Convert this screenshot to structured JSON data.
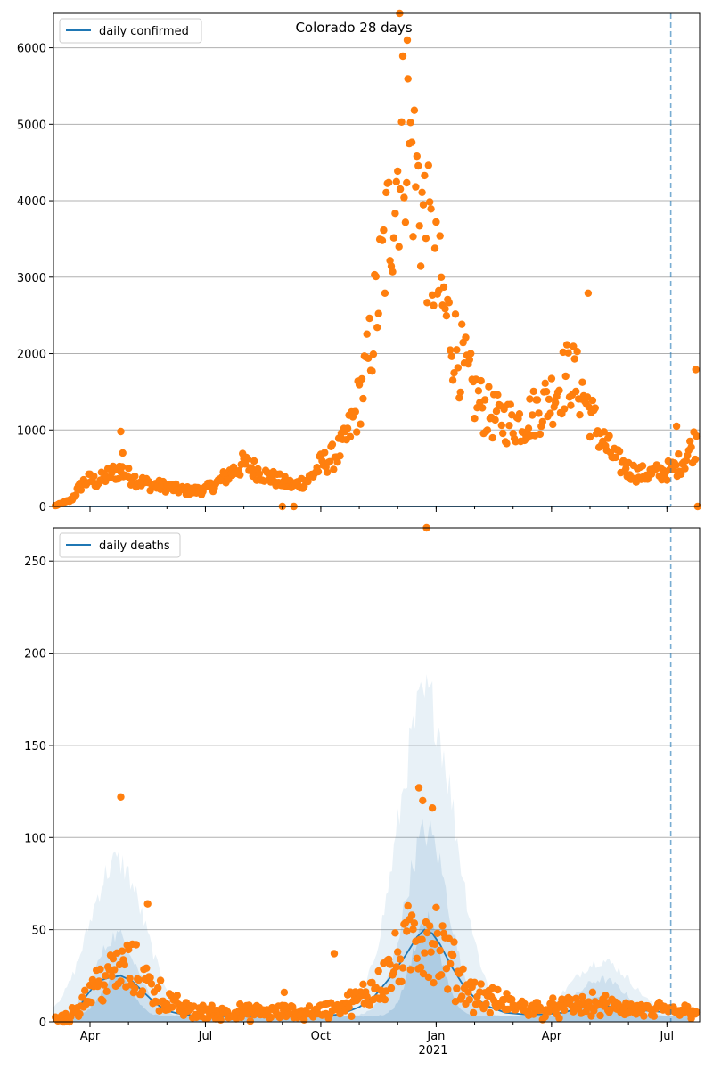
{
  "title": "Colorado 28 days",
  "colors": {
    "observed": "#ff7f0e",
    "model": "#1f77b4",
    "band": "#1f77b4",
    "grid": "#b0b0b0",
    "vline": "#1f77b4"
  },
  "x_axis": {
    "ticks": [
      {
        "label": "Apr",
        "month": 3.0
      },
      {
        "label": "Jul",
        "month": 6.0
      },
      {
        "label": "Oct",
        "month": 9.0
      },
      {
        "label": "Jan",
        "month": 12.0
      },
      {
        "label": "Apr",
        "month": 15.0
      },
      {
        "label": "Jul",
        "month": 18.0
      }
    ],
    "year_label": "2021",
    "range_months": [
      2.05,
      18.85
    ],
    "forecast_line_month": 18.1
  },
  "chart_data": [
    {
      "type": "scatter",
      "legend": "daily confirmed",
      "legend_placement": "upper-left",
      "grid": true,
      "ylim": [
        0,
        6450
      ],
      "y_ticks": [
        0,
        1000,
        2000,
        3000,
        4000,
        5000,
        6000
      ],
      "observed_keypoints": [
        [
          2.1,
          10
        ],
        [
          2.5,
          80
        ],
        [
          2.8,
          300
        ],
        [
          3.0,
          350
        ],
        [
          3.2,
          320
        ],
        [
          3.5,
          420
        ],
        [
          3.8,
          480
        ],
        [
          4.0,
          400
        ],
        [
          4.3,
          330
        ],
        [
          4.6,
          280
        ],
        [
          5.0,
          260
        ],
        [
          5.3,
          220
        ],
        [
          5.6,
          200
        ],
        [
          6.0,
          220
        ],
        [
          6.3,
          300
        ],
        [
          6.6,
          420
        ],
        [
          7.0,
          560
        ],
        [
          7.3,
          480
        ],
        [
          7.6,
          400
        ],
        [
          8.0,
          320
        ],
        [
          8.3,
          270
        ],
        [
          8.7,
          360
        ],
        [
          9.0,
          550
        ],
        [
          9.3,
          640
        ],
        [
          9.6,
          800
        ],
        [
          9.9,
          1200
        ],
        [
          10.2,
          1800
        ],
        [
          10.5,
          2800
        ],
        [
          10.8,
          3800
        ],
        [
          11.0,
          4400
        ],
        [
          11.2,
          5000
        ],
        [
          11.4,
          4500
        ],
        [
          11.6,
          4000
        ],
        [
          11.8,
          3500
        ],
        [
          12.0,
          3000
        ],
        [
          12.2,
          2600
        ],
        [
          12.5,
          2100
        ],
        [
          12.8,
          1700
        ],
        [
          13.0,
          1450
        ],
        [
          13.3,
          1250
        ],
        [
          13.6,
          1150
        ],
        [
          14.0,
          1100
        ],
        [
          14.3,
          1120
        ],
        [
          14.6,
          1250
        ],
        [
          15.0,
          1450
        ],
        [
          15.3,
          1650
        ],
        [
          15.5,
          1750
        ],
        [
          15.8,
          1500
        ],
        [
          16.1,
          1100
        ],
        [
          16.4,
          800
        ],
        [
          16.7,
          600
        ],
        [
          17.0,
          480
        ],
        [
          17.3,
          420
        ],
        [
          17.6,
          430
        ],
        [
          17.9,
          450
        ],
        [
          18.2,
          500
        ],
        [
          18.5,
          650
        ],
        [
          18.8,
          900
        ]
      ],
      "outliers": [
        [
          3.8,
          980
        ],
        [
          3.85,
          700
        ],
        [
          8.0,
          0
        ],
        [
          8.3,
          0
        ],
        [
          18.75,
          1790
        ],
        [
          18.8,
          0
        ],
        [
          18.25,
          1050
        ],
        [
          15.95,
          2790
        ],
        [
          11.05,
          6450
        ],
        [
          11.25,
          6100
        ]
      ],
      "model_level": 0
    },
    {
      "type": "scatter",
      "legend": "daily deaths",
      "legend_placement": "upper-left",
      "grid": true,
      "ylim": [
        0,
        268
      ],
      "y_ticks": [
        0,
        50,
        100,
        150,
        200,
        250
      ],
      "observed_keypoints": [
        [
          2.1,
          0
        ],
        [
          2.5,
          2
        ],
        [
          2.8,
          10
        ],
        [
          3.1,
          18
        ],
        [
          3.4,
          22
        ],
        [
          3.7,
          26
        ],
        [
          4.0,
          28
        ],
        [
          4.3,
          24
        ],
        [
          4.6,
          18
        ],
        [
          4.9,
          12
        ],
        [
          5.2,
          8
        ],
        [
          5.6,
          5
        ],
        [
          6.0,
          4
        ],
        [
          6.5,
          4
        ],
        [
          7.0,
          4
        ],
        [
          7.5,
          4
        ],
        [
          8.0,
          4
        ],
        [
          8.5,
          4
        ],
        [
          9.0,
          5
        ],
        [
          9.3,
          6
        ],
        [
          9.6,
          8
        ],
        [
          9.9,
          10
        ],
        [
          10.2,
          14
        ],
        [
          10.5,
          20
        ],
        [
          10.8,
          26
        ],
        [
          11.1,
          34
        ],
        [
          11.4,
          44
        ],
        [
          11.7,
          50
        ],
        [
          12.0,
          44
        ],
        [
          12.3,
          32
        ],
        [
          12.6,
          22
        ],
        [
          12.9,
          15
        ],
        [
          13.2,
          12
        ],
        [
          13.5,
          10
        ],
        [
          13.8,
          9
        ],
        [
          14.2,
          7
        ],
        [
          14.6,
          6
        ],
        [
          15.0,
          6
        ],
        [
          15.4,
          7
        ],
        [
          15.8,
          8
        ],
        [
          16.2,
          8
        ],
        [
          16.6,
          7
        ],
        [
          17.0,
          6
        ],
        [
          17.5,
          5
        ],
        [
          18.0,
          5
        ],
        [
          18.5,
          5
        ],
        [
          18.8,
          6
        ]
      ],
      "outliers": [
        [
          3.8,
          122
        ],
        [
          4.5,
          64
        ],
        [
          11.75,
          268
        ],
        [
          11.55,
          127
        ],
        [
          11.9,
          116
        ],
        [
          11.65,
          120
        ],
        [
          8.05,
          16
        ],
        [
          9.35,
          37
        ]
      ],
      "model_line": [
        [
          2.3,
          0
        ],
        [
          2.6,
          4
        ],
        [
          2.9,
          14
        ],
        [
          3.2,
          22
        ],
        [
          3.5,
          24
        ],
        [
          3.8,
          25
        ],
        [
          4.1,
          22
        ],
        [
          4.4,
          16
        ],
        [
          4.7,
          10
        ],
        [
          5.0,
          6
        ],
        [
          5.4,
          4
        ],
        [
          6.0,
          3
        ],
        [
          7.0,
          3
        ],
        [
          8.0,
          3
        ],
        [
          9.0,
          3
        ],
        [
          9.5,
          4
        ],
        [
          10.0,
          8
        ],
        [
          10.4,
          14
        ],
        [
          10.8,
          24
        ],
        [
          11.2,
          36
        ],
        [
          11.5,
          46
        ],
        [
          11.7,
          50
        ],
        [
          11.9,
          48
        ],
        [
          12.1,
          42
        ],
        [
          12.4,
          30
        ],
        [
          12.7,
          20
        ],
        [
          13.0,
          13
        ],
        [
          13.4,
          8
        ],
        [
          13.8,
          5
        ],
        [
          14.3,
          4
        ],
        [
          14.8,
          4
        ],
        [
          15.3,
          5
        ],
        [
          15.8,
          8
        ],
        [
          16.2,
          9
        ],
        [
          16.6,
          8
        ],
        [
          17.0,
          7
        ],
        [
          17.5,
          6
        ],
        [
          18.1,
          5
        ]
      ],
      "band_peaks": [
        {
          "month": 3.7,
          "widths": [
            0.55,
            0.75,
            1.0
          ],
          "heights": [
            22,
            44,
            84
          ]
        },
        {
          "month": 11.75,
          "widths": [
            0.55,
            0.8,
            1.05
          ],
          "heights": [
            52,
            100,
            172
          ]
        },
        {
          "month": 16.3,
          "widths": [
            0.7,
            0.9,
            1.1
          ],
          "heights": [
            10,
            20,
            30
          ]
        }
      ]
    }
  ]
}
